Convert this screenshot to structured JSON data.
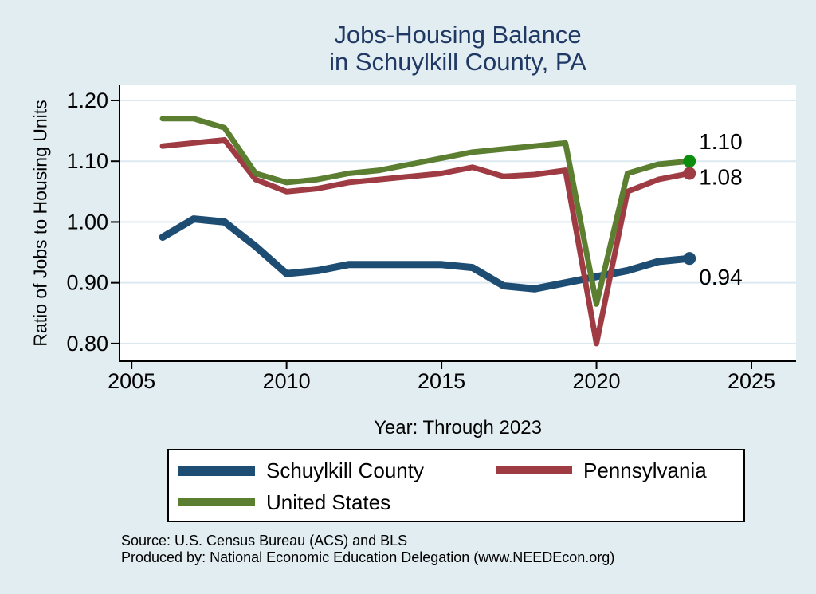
{
  "page": {
    "background": "#e2edf2",
    "title_color": "#1f3864"
  },
  "chart_data": {
    "type": "line",
    "title_line1": "Jobs-Housing Balance",
    "title_line2": "in Schuylkill County, PA",
    "ylabel": "Ratio of Jobs to Housing Units",
    "xlabel": "Year: Through 2023",
    "grid": "horizontal",
    "legend_position": "bottom",
    "xlim": [
      2004.61,
      2026.44
    ],
    "ylim": [
      0.771,
      1.2249
    ],
    "xticks": [
      2005,
      2010,
      2015,
      2020,
      2025
    ],
    "ytick_labels": [
      "0.80",
      "0.90",
      "1.00",
      "1.10",
      "1.20"
    ],
    "ytick_values": [
      0.8,
      0.9,
      1.0,
      1.1,
      1.2
    ],
    "x": [
      2006,
      2007,
      2008,
      2009,
      2010,
      2011,
      2012,
      2013,
      2014,
      2015,
      2016,
      2017,
      2018,
      2019,
      2020,
      2021,
      2022,
      2023
    ],
    "series": [
      {
        "name": "Schuylkill County",
        "color": "#1e4d74",
        "marker_color": "#1e4d74",
        "end_label": "0.94",
        "values": [
          0.975,
          1.005,
          1.0,
          0.96,
          0.915,
          0.92,
          0.93,
          0.93,
          0.93,
          0.93,
          0.925,
          0.895,
          0.89,
          0.9,
          0.91,
          0.92,
          0.935,
          0.94
        ]
      },
      {
        "name": "Pennsylvania",
        "color": "#9e3b43",
        "marker_color": "#9e3b43",
        "end_label": "1.08",
        "values": [
          1.125,
          1.13,
          1.135,
          1.07,
          1.05,
          1.055,
          1.065,
          1.07,
          1.075,
          1.08,
          1.09,
          1.075,
          1.078,
          1.085,
          0.8,
          1.05,
          1.07,
          1.08
        ]
      },
      {
        "name": "United States",
        "color": "#5b7e31",
        "marker_color": "#0b8e0b",
        "end_label": "1.10",
        "values": [
          1.17,
          1.17,
          1.155,
          1.08,
          1.065,
          1.07,
          1.08,
          1.085,
          1.095,
          1.105,
          1.115,
          1.12,
          1.125,
          1.13,
          0.865,
          1.08,
          1.095,
          1.1
        ]
      }
    ],
    "colors": {
      "plot_background": "#ffffff",
      "gridline": "#dce9f0",
      "axis": "#000000",
      "tick_label": "#000000"
    }
  },
  "footer": {
    "source": "Source: U.S. Census Bureau (ACS) and BLS",
    "produced_by": "Produced by: National Economic Education Delegation (www.NEEDEcon.org)"
  }
}
